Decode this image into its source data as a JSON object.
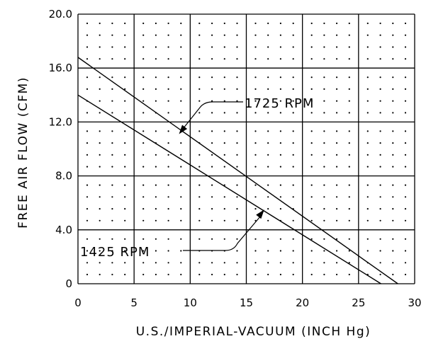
{
  "chart_data": {
    "type": "line",
    "title": "",
    "xlabel": "U.S./IMPERIAL-VACUUM (INCH Hg)",
    "ylabel": "FREE AIR FLOW (CFM)",
    "xlim": [
      0,
      30
    ],
    "ylim": [
      0,
      20
    ],
    "x_ticks": [
      "0",
      "5",
      "10",
      "15",
      "20",
      "25",
      "30"
    ],
    "y_ticks": [
      "0",
      "4.0",
      "8.0",
      "12.0",
      "16.0",
      "20.0"
    ],
    "grid": true,
    "series": [
      {
        "name": "1725 RPM",
        "x": [
          0,
          28.5
        ],
        "y": [
          16.8,
          0
        ]
      },
      {
        "name": "1425 RPM",
        "x": [
          0,
          27.0
        ],
        "y": [
          14.0,
          0
        ]
      }
    ],
    "annotations": [
      {
        "text": "1725 RPM",
        "points_to": [
          9,
          11.1
        ]
      },
      {
        "text": "1425 RPM",
        "points_to": [
          16.6,
          5.5
        ]
      }
    ]
  }
}
